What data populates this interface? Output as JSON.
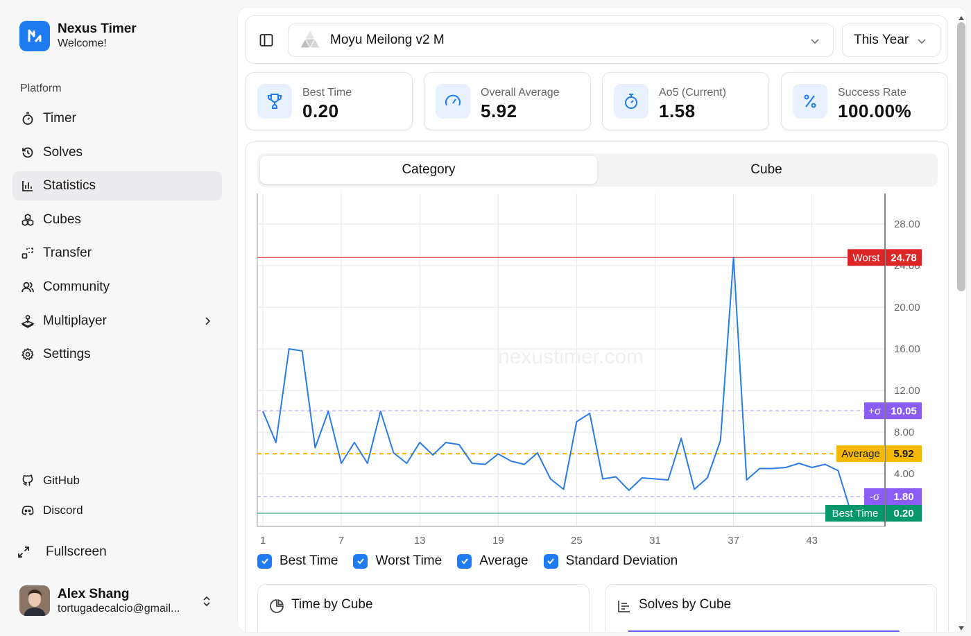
{
  "app": {
    "name": "Nexus Timer",
    "welcome": "Welcome!"
  },
  "sidebar": {
    "section_label": "Platform",
    "items": [
      {
        "label": "Timer",
        "icon": "timer-icon"
      },
      {
        "label": "Solves",
        "icon": "history-icon"
      },
      {
        "label": "Statistics",
        "icon": "bar-chart-icon",
        "active": true
      },
      {
        "label": "Cubes",
        "icon": "cubes-icon"
      },
      {
        "label": "Transfer",
        "icon": "transfer-icon"
      },
      {
        "label": "Community",
        "icon": "users-icon"
      },
      {
        "label": "Multiplayer",
        "icon": "joystick-icon"
      },
      {
        "label": "Settings",
        "icon": "gear-icon"
      }
    ],
    "links": [
      {
        "label": "GitHub",
        "icon": "github-icon"
      },
      {
        "label": "Discord",
        "icon": "discord-icon"
      }
    ],
    "fullscreen_label": "Fullscreen",
    "user": {
      "name": "Alex Shang",
      "email": "tortugadecalcio@gmail..."
    }
  },
  "topbar": {
    "cube": "Moyu Meilong v2 M",
    "period": "This Year"
  },
  "stats": [
    {
      "label": "Best Time",
      "value": "0.20",
      "icon": "trophy-icon"
    },
    {
      "label": "Overall Average",
      "value": "5.92",
      "icon": "gauge-icon"
    },
    {
      "label": "Ao5 (Current)",
      "value": "1.58",
      "icon": "stopwatch-icon"
    },
    {
      "label": "Success Rate",
      "value": "100.00%",
      "icon": "percent-icon"
    }
  ],
  "tabs": [
    "Category",
    "Cube"
  ],
  "legend": [
    "Best Time",
    "Worst Time",
    "Average",
    "Standard Deviation"
  ],
  "sub_cards": [
    {
      "title": "Time by Cube",
      "icon": "pie-chart-icon"
    },
    {
      "title": "Solves by Cube",
      "icon": "bar-list-icon"
    }
  ],
  "colors": {
    "accent": "#1f7bf2",
    "worst": "#dc2626",
    "average": "#f5b800",
    "deviation": "#8b5cf6",
    "best": "#059669"
  },
  "chart_data": {
    "type": "line",
    "watermark": "nexustimer.com",
    "x_ticks": [
      1,
      7,
      13,
      19,
      25,
      31,
      37,
      43
    ],
    "y_ticks": [
      "4.00",
      "8.00",
      "12.00",
      "16.00",
      "20.00",
      "24.00",
      "28.00"
    ],
    "ylim": [
      0,
      32
    ],
    "x": [
      1,
      2,
      3,
      4,
      5,
      6,
      7,
      8,
      9,
      10,
      11,
      12,
      13,
      14,
      15,
      16,
      17,
      18,
      19,
      20,
      21,
      22,
      23,
      24,
      25,
      26,
      27,
      28,
      29,
      30,
      31,
      32,
      33,
      34,
      35,
      36,
      37,
      38,
      39,
      40,
      41,
      42,
      43,
      44,
      45,
      46
    ],
    "values": [
      10.0,
      7.0,
      16.0,
      15.8,
      6.5,
      10.0,
      5.0,
      7.0,
      5.0,
      10.0,
      6.0,
      5.0,
      7.0,
      5.8,
      7.0,
      6.8,
      5.0,
      4.9,
      5.9,
      5.2,
      4.9,
      6.0,
      3.5,
      2.5,
      9.0,
      9.8,
      3.5,
      3.7,
      2.4,
      3.6,
      3.5,
      3.4,
      7.4,
      2.5,
      3.6,
      7.2,
      24.78,
      3.4,
      4.5,
      4.5,
      4.6,
      5.0,
      4.6,
      4.9,
      4.3,
      0.2
    ],
    "reference_lines": [
      {
        "label": "Worst",
        "value": "24.78"
      },
      {
        "label": "+σ",
        "value": "10.05"
      },
      {
        "label": "Average",
        "value": "5.92"
      },
      {
        "label": "-σ",
        "value": "1.80"
      },
      {
        "label": "Best Time",
        "value": "0.20"
      }
    ]
  }
}
